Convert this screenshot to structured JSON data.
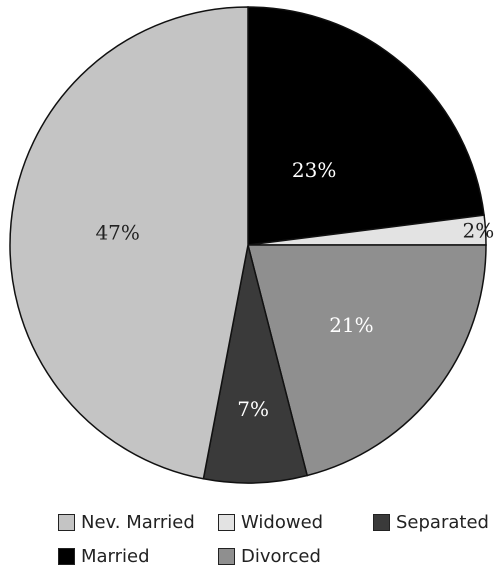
{
  "chart_data": {
    "type": "pie",
    "slices": [
      {
        "label": "Married",
        "value": 23,
        "display": "23%",
        "color": "#000000",
        "text_color": "#ffffff"
      },
      {
        "label": "Widowed",
        "value": 2,
        "display": "2%",
        "color": "#e3e3e3",
        "text_color": "#222222"
      },
      {
        "label": "Divorced",
        "value": 21,
        "display": "21%",
        "color": "#8f8f8f",
        "text_color": "#ffffff"
      },
      {
        "label": "Separated",
        "value": 7,
        "display": "7%",
        "color": "#3a3a3a",
        "text_color": "#ffffff"
      },
      {
        "label": "Nev. Married",
        "value": 47,
        "display": "47%",
        "color": "#c4c4c4",
        "text_color": "#222222"
      }
    ],
    "legend": [
      {
        "label": "Nev. Married",
        "color": "#c4c4c4"
      },
      {
        "label": "Widowed",
        "color": "#e3e3e3"
      },
      {
        "label": "Separated",
        "color": "#3a3a3a"
      },
      {
        "label": "Married",
        "color": "#000000"
      },
      {
        "label": "Divorced",
        "color": "#8f8f8f"
      }
    ],
    "legend_placement": "bottom"
  }
}
